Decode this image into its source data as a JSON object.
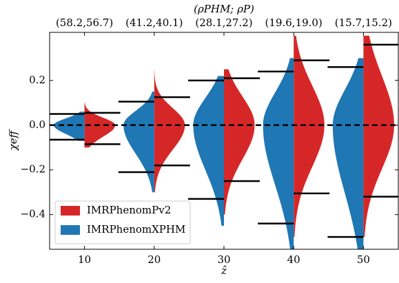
{
  "chart_data": {
    "type": "violin",
    "title": "(ρPHM; ρP)",
    "top_labels": [
      "(58.2,56.7)",
      "(41.2,40.1)",
      "(28.1,27.2)",
      "(19.6,19.0)",
      "(15.7,15.2)"
    ],
    "x_label": "ẑ",
    "y_label": "χeff",
    "x": [
      10,
      20,
      30,
      40,
      50
    ],
    "xlim": [
      5,
      55
    ],
    "xticks": [
      10,
      20,
      30,
      40,
      50
    ],
    "ylim": [
      -0.555,
      0.415
    ],
    "yticks": [
      {
        "value": -0.4,
        "label": "−0.4"
      },
      {
        "value": -0.2,
        "label": "−0.2"
      },
      {
        "value": 0,
        "label": "0.0"
      },
      {
        "value": 0.2,
        "label": "0.2"
      }
    ],
    "hline": 0,
    "legend": "lower left",
    "series": [
      {
        "name": "IMRPhenomPv2",
        "color": "#d62728",
        "side": "right",
        "median": [
          0,
          0,
          0,
          0,
          0
        ],
        "upper": [
          0.055,
          0.125,
          0.21,
          0.29,
          0.36
        ],
        "lower": [
          -0.085,
          -0.18,
          -0.25,
          -0.305,
          -0.32
        ],
        "max": [
          0.1,
          0.25,
          0.25,
          0.4,
          0.4
        ],
        "min": [
          -0.1,
          -0.3,
          -0.4,
          -0.5,
          -0.5
        ]
      },
      {
        "name": "IMRPhenomXPHM",
        "color": "#1f77b4",
        "side": "left",
        "median": [
          0,
          0,
          0,
          0,
          0
        ],
        "upper": [
          0.05,
          0.105,
          0.2,
          0.24,
          0.26
        ],
        "lower": [
          -0.065,
          -0.21,
          -0.33,
          -0.44,
          -0.5
        ],
        "max": [
          0.06,
          0.15,
          0.22,
          0.3,
          0.3
        ],
        "min": [
          -0.07,
          -0.3,
          -0.45,
          -0.555,
          -0.555
        ]
      }
    ]
  }
}
